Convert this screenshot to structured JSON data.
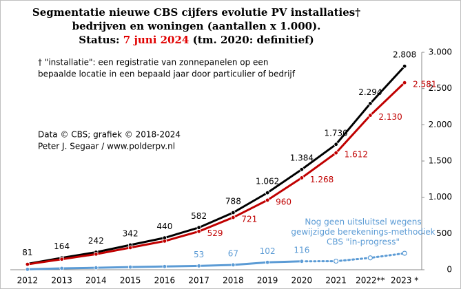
{
  "chart_data": {
    "type": "line",
    "title": [
      "Segmentatie nieuwe CBS cijfers evolutie PV installaties†",
      "bedrijven en woningen (aantallen x 1.000)."
    ],
    "status": {
      "label": "Status:",
      "date": "7 juni 2024",
      "note": "(tm. 2020: definitief)",
      "date_color": "#e00000"
    },
    "categories": [
      "2012",
      "2013",
      "2014",
      "2015",
      "2016",
      "2017",
      "2018",
      "2019",
      "2020",
      "2021",
      "2022**",
      "2023 *"
    ],
    "series": [
      {
        "color": "#000000",
        "values": [
          81,
          164,
          242,
          342,
          440,
          582,
          788,
          1062,
          1384,
          1730,
          2294,
          2808
        ],
        "value_labels": [
          "81",
          "164",
          "242",
          "342",
          "440",
          "582",
          "788",
          "1.062",
          "1.384",
          "1.730",
          "2.294",
          "2.808"
        ],
        "label_position": "above"
      },
      {
        "color": "#c00000",
        "values": [
          75,
          145,
          215,
          305,
          395,
          529,
          721,
          960,
          1268,
          1612,
          2130,
          2581
        ],
        "value_labels": [
          null,
          null,
          null,
          null,
          null,
          "529",
          "721",
          "960",
          "1.268",
          "1.612",
          "2.130",
          "2.581"
        ],
        "label_position": "right"
      },
      {
        "color": "#5b9bd5",
        "values": [
          6,
          19,
          27,
          37,
          45,
          53,
          67,
          102,
          116,
          118,
          164,
          227
        ],
        "value_labels": [
          null,
          null,
          null,
          null,
          null,
          "53",
          "67",
          "102",
          "116",
          null,
          null,
          null
        ],
        "label_position": "above",
        "dotted_from": "2020"
      }
    ],
    "ylim": [
      0,
      3000
    ],
    "yticks": [
      0,
      500,
      {
        "value": 1000,
        "label": "1.000"
      },
      {
        "value": 1500,
        "label": "1.500"
      },
      {
        "value": 2000,
        "label": "2.000"
      },
      {
        "value": 2500,
        "label": "2.500"
      },
      {
        "value": 3000,
        "label": "3.000"
      }
    ],
    "y_axis_side": "right",
    "annotations": [
      {
        "lines": [
          "† \"installatie\": een registratie van zonnepanelen op een",
          "bepaalde locatie in een bepaald jaar door particulier of bedrijf"
        ],
        "color": "#000000"
      },
      {
        "lines": [
          "Data © CBS; grafiek © 2018-2024",
          "Peter J. Segaar / www.polderpv.nl"
        ],
        "color": "#000000"
      },
      {
        "lines": [
          "Nog geen uitsluitsel wegens",
          "gewijzigde berekenings-methodiek",
          "CBS \"in-progress\""
        ],
        "color": "#5b9bd5"
      }
    ]
  }
}
